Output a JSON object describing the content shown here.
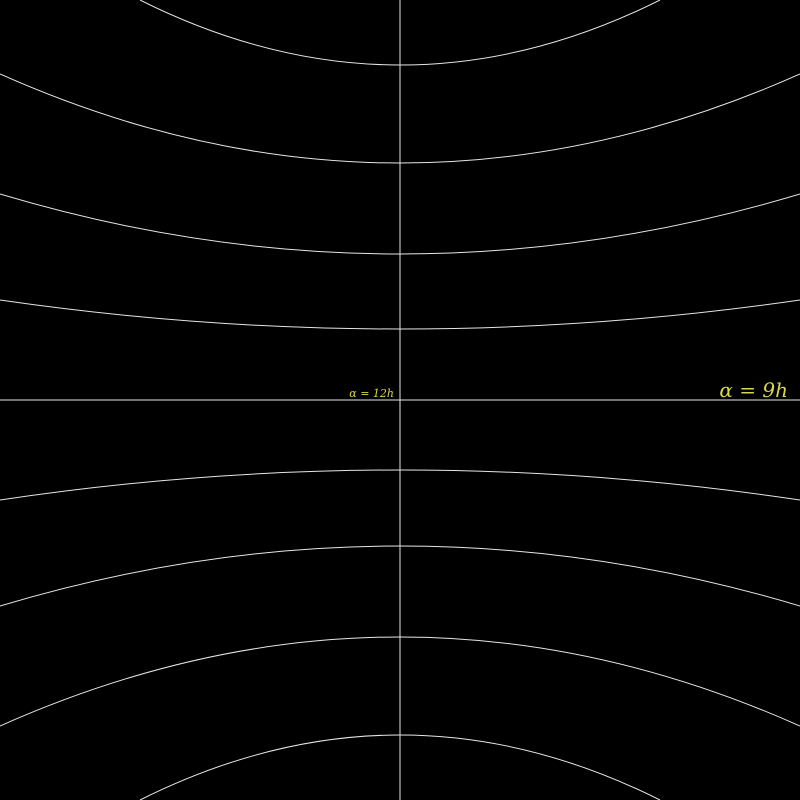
{
  "colors": {
    "background": "#000000",
    "grid_line": "#e6e6e6",
    "label": "#d8d84a"
  },
  "labels": {
    "center_meridian": "α = 12h",
    "edge_meridian": "α = 9h"
  }
}
